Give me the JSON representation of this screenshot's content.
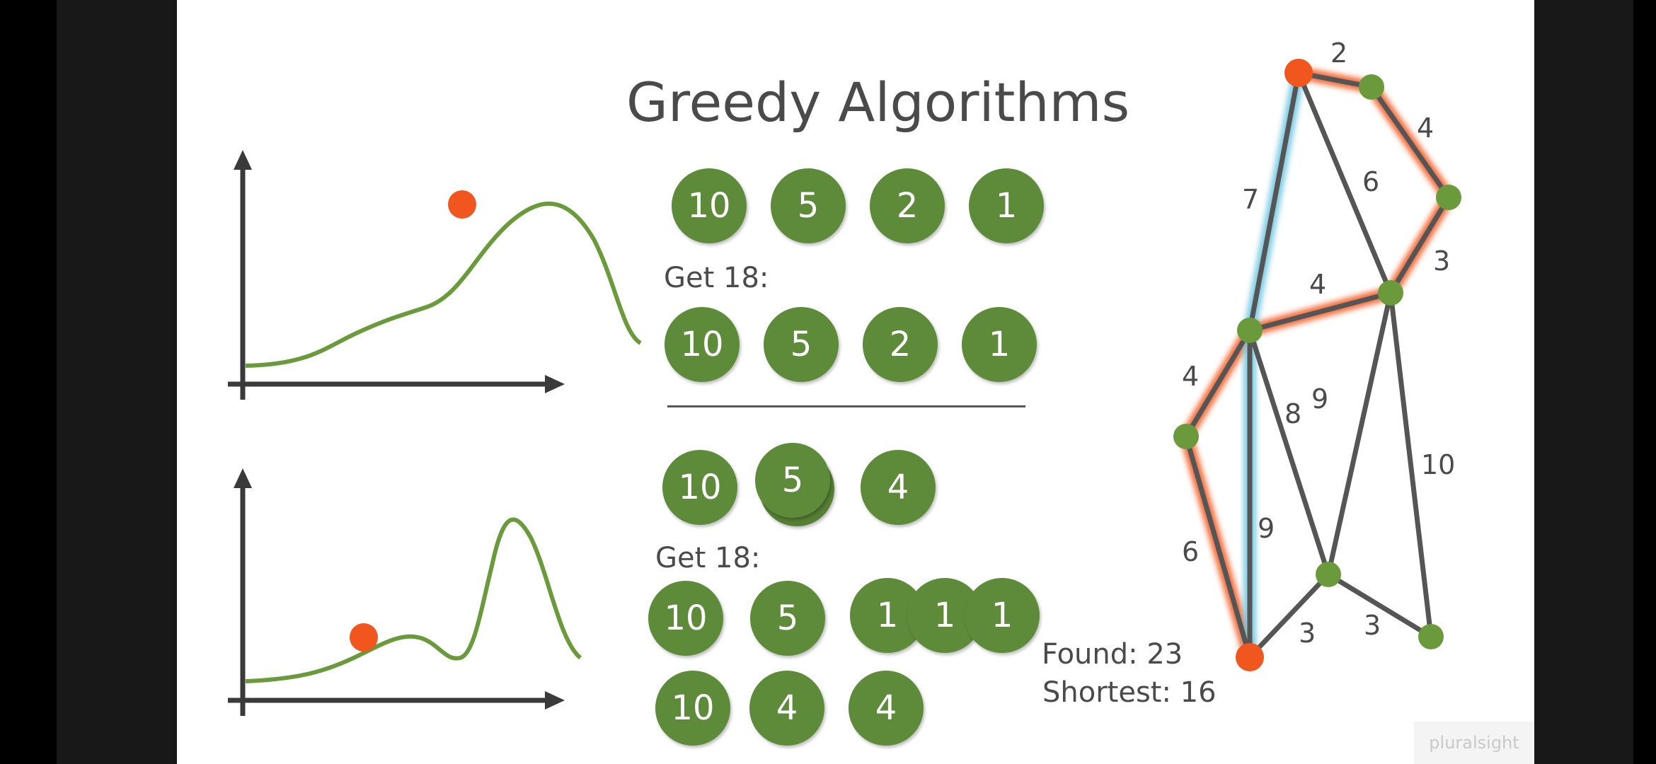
{
  "title": "Greedy Algorithms",
  "coins_problem_1": {
    "available": [
      "10",
      "5",
      "2",
      "1"
    ],
    "target_label": "Get 18:",
    "solution": [
      "10",
      "5",
      "2",
      "1"
    ]
  },
  "coins_problem_2": {
    "available": [
      "10",
      "5",
      "4"
    ],
    "target_label": "Get 18:",
    "greedy_solution": [
      "10",
      "5",
      "1",
      "1",
      "1"
    ],
    "optimal_solution": [
      "10",
      "4",
      "4"
    ]
  },
  "graph": {
    "edge_labels": [
      "2",
      "4",
      "6",
      "7",
      "3",
      "4",
      "4",
      "8",
      "9",
      "10",
      "9",
      "6",
      "3",
      "3"
    ],
    "found_label": "Found: 23",
    "shortest_label": "Shortest: 16"
  },
  "colors": {
    "node_green": "#6a9a3c",
    "node_orange": "#f0561e",
    "curve_green": "#6a9a3c",
    "highlight_orange": "#f0561e",
    "highlight_blue": "#6fc7e0"
  },
  "watermark": "pluralsight"
}
